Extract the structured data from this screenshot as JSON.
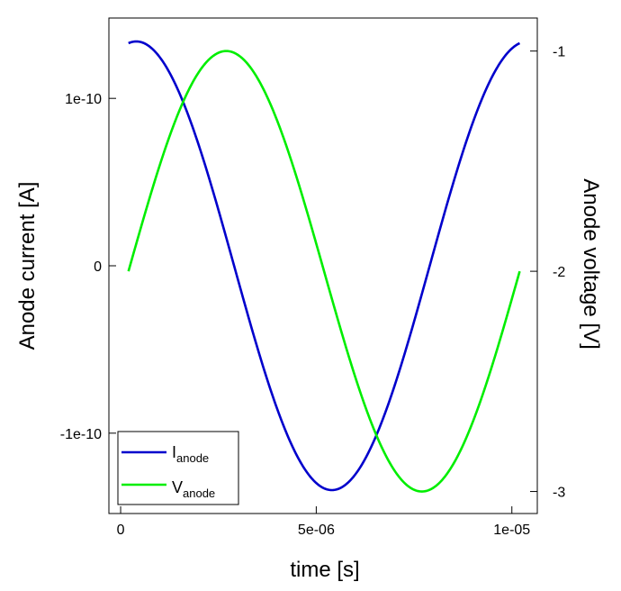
{
  "chart_data": {
    "type": "line",
    "xlabel": "time [s]",
    "ylabel_left": "Anode current [A]",
    "ylabel_right": "Anode voltage [V]",
    "xlim": [
      -3e-07,
      1.065e-05
    ],
    "ylim_left": [
      -1.48e-10,
      1.48e-10
    ],
    "ylim_right": [
      -3.1,
      -0.85
    ],
    "x_ticks": [
      0,
      5e-06,
      1e-05
    ],
    "x_tick_labels": [
      "0",
      "5e-06",
      "1e-05"
    ],
    "y_left_ticks": [
      -1e-10,
      0,
      1e-10
    ],
    "y_left_tick_labels": [
      "-1e-10",
      "0",
      "1e-10"
    ],
    "y_right_ticks": [
      -3,
      -2,
      -1
    ],
    "y_right_tick_labels": [
      "-3",
      "-2",
      "-1"
    ],
    "series": [
      {
        "name": "I",
        "subscript": "anode",
        "axis": "left",
        "color": "#0000cc",
        "amplitude": 1.34e-10,
        "period": 1e-05,
        "phase_shift": 4e-07,
        "x_start": 2e-07,
        "x_end": 1.02e-05
      },
      {
        "name": "V",
        "subscript": "anode",
        "axis": "right",
        "color": "#00ee00",
        "offset": -2,
        "amplitude": 1,
        "period": 1e-05,
        "phase_shift": 2.7e-06,
        "x_start": 2e-07,
        "x_end": 1.02e-05
      }
    ],
    "legend_position": "bottom-left"
  }
}
